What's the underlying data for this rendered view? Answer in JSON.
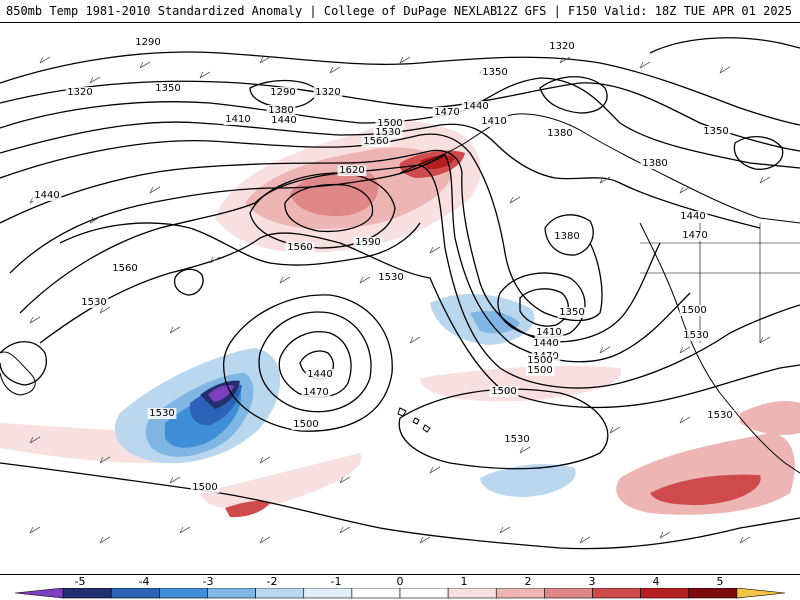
{
  "header": {
    "title_left": "850mb Temp 1981-2010 Standardized Anomaly | College of DuPage NEXLAB",
    "title_right": "12Z GFS | F150 Valid: 18Z TUE APR 01 2025"
  },
  "map": {
    "contour_labels": [
      "1290",
      "1320",
      "1350",
      "1290",
      "1320",
      "1380",
      "1410",
      "1440",
      "1350",
      "1320",
      "1500",
      "1530",
      "1560",
      "1470",
      "1440",
      "1410",
      "1380",
      "1350",
      "1380",
      "1620",
      "1590",
      "1560",
      "1440",
      "1560",
      "1530",
      "1440",
      "1470",
      "1380",
      "1500",
      "1530",
      "1350",
      "1410",
      "1440",
      "1470",
      "1500",
      "1530",
      "1440",
      "1470",
      "1500",
      "1530",
      "1530",
      "1500",
      "1530",
      "1500",
      "1500"
    ]
  },
  "legend": {
    "ticks": [
      "-5",
      "-4",
      "-3",
      "-2",
      "-1",
      "0",
      "1",
      "2",
      "3",
      "4",
      "5"
    ],
    "colors": {
      "neg": [
        "#7b3fbf",
        "#23306e",
        "#2c63b8",
        "#3f8fd6",
        "#7fb6e3",
        "#b9d7ee",
        "#e2eef8"
      ],
      "neutral": "#ffffff",
      "pos": [
        "#f8e0e0",
        "#eeb5b5",
        "#e08787",
        "#cf4b4b",
        "#b61f1f",
        "#7d0b0b",
        "#f4c542"
      ]
    }
  }
}
